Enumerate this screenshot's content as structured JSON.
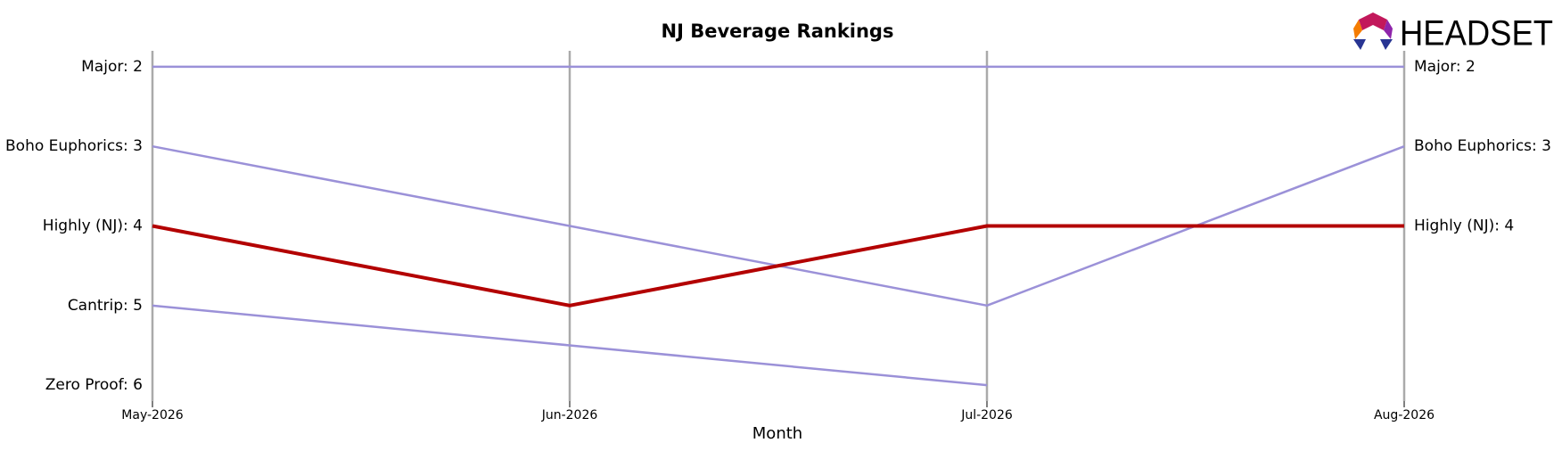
{
  "chart_data": {
    "type": "line",
    "title": "NJ Beverage Rankings",
    "logo": "HEADSET",
    "x_label": "Month",
    "categories": [
      "May-2026",
      "Jun-2026",
      "Jul-2026",
      "Aug-2026"
    ],
    "ylim": [
      6.2,
      1.8
    ],
    "yticks": [
      {
        "value": 2,
        "label": "Major: 2"
      },
      {
        "value": 3,
        "label": "Boho Euphorics: 3"
      },
      {
        "value": 4,
        "label": "Highly (NJ): 4"
      },
      {
        "value": 5,
        "label": "Cantrip: 5"
      },
      {
        "value": 6,
        "label": "Zero Proof: 6"
      }
    ],
    "y2ticks": [
      {
        "value": 2,
        "label": "Major: 2"
      },
      {
        "value": 3,
        "label": "Boho Euphorics: 3"
      },
      {
        "value": 4,
        "label": "Highly (NJ): 4"
      }
    ],
    "series": [
      {
        "name": "Major",
        "color": "#9b91d8",
        "values": [
          2,
          2,
          2,
          2
        ]
      },
      {
        "name": "Boho Euphorics",
        "color": "#9b91d8",
        "values": [
          3,
          4,
          5,
          3
        ]
      },
      {
        "name": "Cantrip",
        "color": "#9b91d8",
        "values": [
          5,
          5.5,
          6,
          null
        ]
      },
      {
        "name": "Highly (NJ)",
        "color": "#b30000",
        "highlight": true,
        "values": [
          4,
          5,
          4,
          4
        ]
      }
    ]
  }
}
